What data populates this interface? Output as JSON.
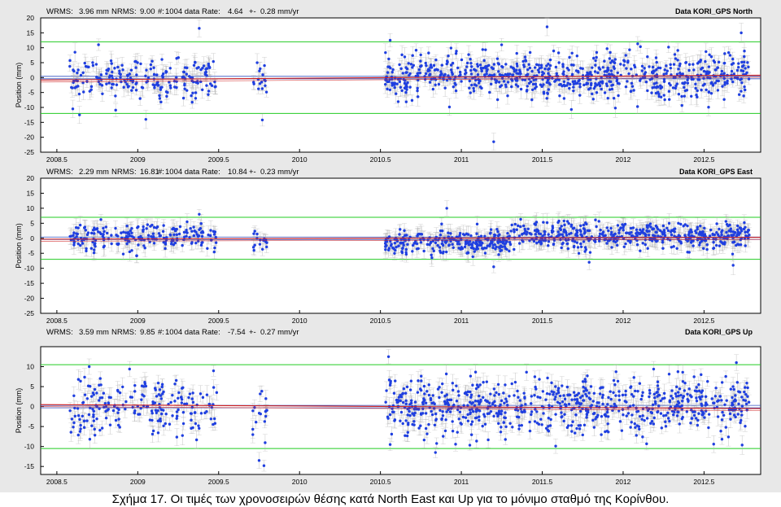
{
  "caption": "Σχήμα 17. Οι τιμές των χρονοσειρών  θέσης κατά North East και Up για το μόνιμο σταθμό της Κορίνθου.",
  "colors": {
    "points": "#1f3fe0",
    "errorbars": "#a8a8a8",
    "fit": "#d02020",
    "bounds": "#22cc22",
    "zeroline": "#3050c0"
  },
  "chart_data": [
    {
      "type": "scatter",
      "title": "Data KORI_GPS North",
      "stats": {
        "wrms_label": "WRMS:",
        "wrms": "3.96 mm",
        "nrms_label": "NRMS:",
        "nrms": "9.00",
        "n_label": "#:",
        "n": "1004 data",
        "rate_label": "Rate:",
        "rate": "4.64",
        "pm": "+-",
        "rate_err": "0.28 mm/yr"
      },
      "ylabel": "Position (mm)",
      "xlim": [
        2008.4,
        2012.85
      ],
      "ylim": [
        -25,
        20
      ],
      "yticks": [
        20,
        15,
        10,
        5,
        0,
        -5,
        -10,
        -15,
        -20,
        -25
      ],
      "xticks": [
        "2008.5",
        "2009",
        "2009.5",
        "2010",
        "2010.5",
        "2011",
        "2011.5",
        "2012",
        "2012.5"
      ],
      "xtick_values": [
        2008.5,
        2009,
        2009.5,
        2010,
        2010.5,
        2011,
        2011.5,
        2012,
        2012.5
      ],
      "bounds": [
        12,
        -12
      ],
      "fit": {
        "y_start": -0.8,
        "y_end": 0.8
      },
      "segments": [
        {
          "x": [
            2008.58,
            2009.49
          ],
          "n": 210,
          "spread": 3.8,
          "offset": 0.0
        },
        {
          "x": [
            2009.71,
            2009.8
          ],
          "n": 16,
          "spread": 3.5,
          "offset": -1.0
        },
        {
          "x": [
            2010.53,
            2012.78
          ],
          "n": 750,
          "spread": 3.6,
          "offset": 0.5
        }
      ],
      "outliers": [
        {
          "x": 2008.64,
          "y": -12.5
        },
        {
          "x": 2009.38,
          "y": 16.5
        },
        {
          "x": 2009.05,
          "y": -14.0
        },
        {
          "x": 2009.77,
          "y": -14.2
        },
        {
          "x": 2011.2,
          "y": -21.5
        },
        {
          "x": 2011.53,
          "y": 17.0
        },
        {
          "x": 2012.73,
          "y": 15.0
        },
        {
          "x": 2010.56,
          "y": 12.5
        }
      ]
    },
    {
      "type": "scatter",
      "title": "Data KORI_GPS East",
      "stats": {
        "wrms_label": "WRMS:",
        "wrms": "2.29 mm",
        "nrms_label": "NRMS:",
        "nrms": "16.81",
        "n_label": "#:",
        "n": "1004 data",
        "rate_label": "Rate:",
        "rate": "10.84",
        "pm": "+-",
        "rate_err": "0.23 mm/yr"
      },
      "ylabel": "Position (mm)",
      "xlim": [
        2008.4,
        2012.85
      ],
      "ylim": [
        -25,
        20
      ],
      "yticks": [
        20,
        15,
        10,
        5,
        0,
        -5,
        -10,
        -15,
        -20,
        -25
      ],
      "xticks": [
        "2008.5",
        "2009",
        "2009.5",
        "2010",
        "2010.5",
        "2011",
        "2011.5",
        "2012",
        "2012.5"
      ],
      "xtick_values": [
        2008.5,
        2009,
        2009.5,
        2010,
        2010.5,
        2011,
        2011.5,
        2012,
        2012.5
      ],
      "bounds": [
        7,
        -7
      ],
      "fit": {
        "y_start": -0.3,
        "y_end": 0.3
      },
      "segments": [
        {
          "x": [
            2008.58,
            2009.49
          ],
          "n": 210,
          "spread": 2.2,
          "offset": 0.5
        },
        {
          "x": [
            2009.71,
            2009.8
          ],
          "n": 16,
          "spread": 2.0,
          "offset": -1.0
        },
        {
          "x": [
            2010.53,
            2011.3
          ],
          "n": 260,
          "spread": 2.0,
          "offset": -1.5
        },
        {
          "x": [
            2011.3,
            2012.78
          ],
          "n": 490,
          "spread": 2.2,
          "offset": 1.0
        }
      ],
      "outliers": [
        {
          "x": 2010.91,
          "y": 10.0
        },
        {
          "x": 2011.2,
          "y": -9.5
        },
        {
          "x": 2012.68,
          "y": -9.0
        },
        {
          "x": 2009.38,
          "y": 8.0
        },
        {
          "x": 2011.79,
          "y": -8.0
        }
      ]
    },
    {
      "type": "scatter",
      "title": "Data KORI_GPS Up",
      "stats": {
        "wrms_label": "WRMS:",
        "wrms": "3.59 mm",
        "nrms_label": "NRMS:",
        "nrms": "9.85",
        "n_label": "#:",
        "n": "1004 data",
        "rate_label": "Rate:",
        "rate": "-7.54",
        "pm": "+-",
        "rate_err": "0.27 mm/yr"
      },
      "ylabel": "Position (mm)",
      "xlim": [
        2008.4,
        2012.85
      ],
      "ylim": [
        -17,
        15
      ],
      "yticks": [
        10,
        5,
        0,
        -5,
        -10,
        -15
      ],
      "xticks": [
        "2008.5",
        "2009",
        "2009.5",
        "2010",
        "2010.5",
        "2011",
        "2011.5",
        "2012",
        "2012.5"
      ],
      "xtick_values": [
        2008.5,
        2009,
        2009.5,
        2010,
        2010.5,
        2011,
        2011.5,
        2012,
        2012.5
      ],
      "bounds": [
        10.5,
        -10.5
      ],
      "fit": {
        "y_start": 0.5,
        "y_end": -0.5
      },
      "segments": [
        {
          "x": [
            2008.58,
            2009.49
          ],
          "n": 210,
          "spread": 3.6,
          "offset": 0.0
        },
        {
          "x": [
            2009.71,
            2009.8
          ],
          "n": 16,
          "spread": 3.5,
          "offset": -1.5
        },
        {
          "x": [
            2010.53,
            2012.78
          ],
          "n": 750,
          "spread": 3.6,
          "offset": 0.0
        }
      ],
      "outliers": [
        {
          "x": 2010.55,
          "y": 12.5
        },
        {
          "x": 2012.7,
          "y": 11.0
        },
        {
          "x": 2009.75,
          "y": -13.5
        },
        {
          "x": 2009.78,
          "y": -14.8
        },
        {
          "x": 2010.84,
          "y": -11.5
        },
        {
          "x": 2010.56,
          "y": -9.5
        },
        {
          "x": 2008.7,
          "y": 10.0
        }
      ]
    }
  ]
}
